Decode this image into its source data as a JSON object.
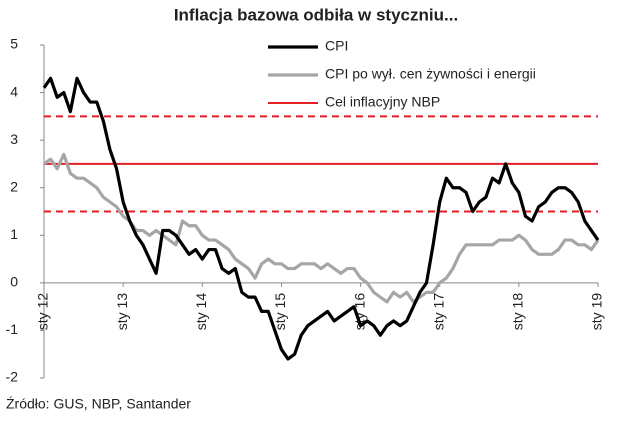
{
  "chart_data": {
    "type": "line",
    "title": "Inflacja bazowa odbiła w styczniu...",
    "source": "Źródło: GUS, NBP, Santander",
    "categories": [
      "sty 12",
      null,
      null,
      null,
      null,
      null,
      null,
      null,
      null,
      null,
      null,
      null,
      "sty 13",
      null,
      null,
      null,
      null,
      null,
      null,
      null,
      null,
      null,
      null,
      null,
      "sty 14",
      null,
      null,
      null,
      null,
      null,
      null,
      null,
      null,
      null,
      null,
      null,
      "sty 15",
      null,
      null,
      null,
      null,
      null,
      null,
      null,
      null,
      null,
      null,
      null,
      "sty 16",
      null,
      null,
      null,
      null,
      null,
      null,
      null,
      null,
      null,
      null,
      null,
      "sty 17",
      null,
      null,
      null,
      null,
      null,
      null,
      null,
      null,
      null,
      null,
      null,
      "sty 18",
      null,
      null,
      null,
      null,
      null,
      null,
      null,
      null,
      null,
      null,
      null,
      "sty 19"
    ],
    "series": [
      {
        "name": "CPI",
        "color": "#000000",
        "width": 3.2,
        "values": [
          4.1,
          4.3,
          3.9,
          4.0,
          3.6,
          4.3,
          4.0,
          3.8,
          3.8,
          3.4,
          2.8,
          2.4,
          1.7,
          1.3,
          1.0,
          0.8,
          0.5,
          0.2,
          1.1,
          1.1,
          1.0,
          0.8,
          0.6,
          0.7,
          0.5,
          0.7,
          0.7,
          0.3,
          0.2,
          0.3,
          -0.2,
          -0.3,
          -0.3,
          -0.6,
          -0.6,
          -1.0,
          -1.4,
          -1.6,
          -1.5,
          -1.1,
          -0.9,
          -0.8,
          -0.7,
          -0.6,
          -0.8,
          -0.7,
          -0.6,
          -0.5,
          -0.9,
          -0.8,
          -0.9,
          -1.1,
          -0.9,
          -0.8,
          -0.9,
          -0.8,
          -0.5,
          -0.2,
          0.0,
          0.8,
          1.7,
          2.2,
          2.0,
          2.0,
          1.9,
          1.5,
          1.7,
          1.8,
          2.2,
          2.1,
          2.5,
          2.1,
          1.9,
          1.4,
          1.3,
          1.6,
          1.7,
          1.9,
          2.0,
          2.0,
          1.9,
          1.7,
          1.3,
          1.1,
          0.9
        ]
      },
      {
        "name": "CPI po wył. cen żywności i energii",
        "color": "#a6a6a6",
        "width": 3.2,
        "values": [
          2.5,
          2.6,
          2.4,
          2.7,
          2.3,
          2.2,
          2.2,
          2.1,
          2.0,
          1.8,
          1.7,
          1.6,
          1.4,
          1.3,
          1.1,
          1.1,
          1.0,
          1.1,
          1.0,
          0.9,
          0.8,
          1.3,
          1.2,
          1.2,
          1.0,
          0.9,
          0.9,
          0.8,
          0.7,
          0.5,
          0.4,
          0.3,
          0.1,
          0.4,
          0.5,
          0.4,
          0.4,
          0.3,
          0.3,
          0.4,
          0.4,
          0.4,
          0.3,
          0.4,
          0.3,
          0.2,
          0.3,
          0.3,
          0.1,
          0.0,
          -0.2,
          -0.3,
          -0.4,
          -0.2,
          -0.3,
          -0.2,
          -0.4,
          -0.3,
          -0.2,
          -0.2,
          0.0,
          0.1,
          0.3,
          0.6,
          0.8,
          0.8,
          0.8,
          0.8,
          0.8,
          0.9,
          0.9,
          0.9,
          1.0,
          0.9,
          0.7,
          0.6,
          0.6,
          0.6,
          0.7,
          0.9,
          0.9,
          0.8,
          0.8,
          0.7,
          0.9
        ]
      }
    ],
    "reference_lines": [
      {
        "name": "Cel inflacyjny NBP",
        "value": 2.5,
        "color": "#e31e24",
        "dashed": false
      },
      {
        "value": 3.5,
        "color": "#e31e24",
        "dashed": true
      },
      {
        "value": 1.5,
        "color": "#e31e24",
        "dashed": true
      }
    ],
    "ylim": [
      -2,
      5
    ],
    "yticks": [
      -2,
      -1,
      0,
      1,
      2,
      3,
      4,
      5
    ],
    "grid": false
  }
}
